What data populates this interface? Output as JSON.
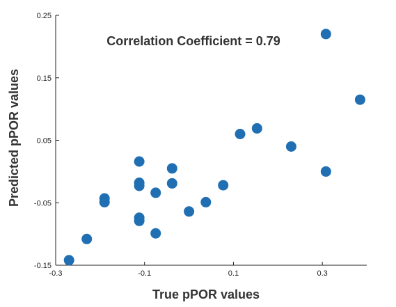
{
  "chart_data": {
    "type": "scatter",
    "title": "",
    "xlabel": "True pPOR values",
    "ylabel": "Predicted pPOR values",
    "annotation": "Correlation Coefficient = 0.79",
    "xlim": [
      -0.3,
      0.4
    ],
    "ylim": [
      -0.15,
      0.25
    ],
    "xticks": [
      -0.3,
      -0.1,
      0.1,
      0.3
    ],
    "xtick_labels": [
      "-0.3",
      "-0.1",
      "0.1",
      "0.3"
    ],
    "yticks": [
      -0.15,
      -0.05,
      0.05,
      0.15,
      0.25
    ],
    "ytick_labels": [
      "-0.15",
      "-0.05",
      "0.05",
      "0.15",
      "0.25"
    ],
    "grid": false,
    "marker_color": "#1f6fb2",
    "points": [
      {
        "x": -0.27,
        "y": -0.142
      },
      {
        "x": -0.23,
        "y": -0.108
      },
      {
        "x": -0.19,
        "y": -0.043
      },
      {
        "x": -0.19,
        "y": -0.049
      },
      {
        "x": -0.112,
        "y": 0.016
      },
      {
        "x": -0.112,
        "y": -0.018
      },
      {
        "x": -0.112,
        "y": -0.023
      },
      {
        "x": -0.112,
        "y": -0.074
      },
      {
        "x": -0.112,
        "y": -0.079
      },
      {
        "x": -0.075,
        "y": -0.034
      },
      {
        "x": -0.075,
        "y": -0.099
      },
      {
        "x": -0.038,
        "y": 0.005
      },
      {
        "x": -0.038,
        "y": -0.019
      },
      {
        "x": 0.0,
        "y": -0.064
      },
      {
        "x": 0.038,
        "y": -0.049
      },
      {
        "x": 0.077,
        "y": -0.022
      },
      {
        "x": 0.115,
        "y": 0.06
      },
      {
        "x": 0.153,
        "y": 0.069
      },
      {
        "x": 0.23,
        "y": 0.04
      },
      {
        "x": 0.308,
        "y": 0.0
      },
      {
        "x": 0.308,
        "y": 0.22
      },
      {
        "x": 0.385,
        "y": 0.115
      }
    ]
  }
}
